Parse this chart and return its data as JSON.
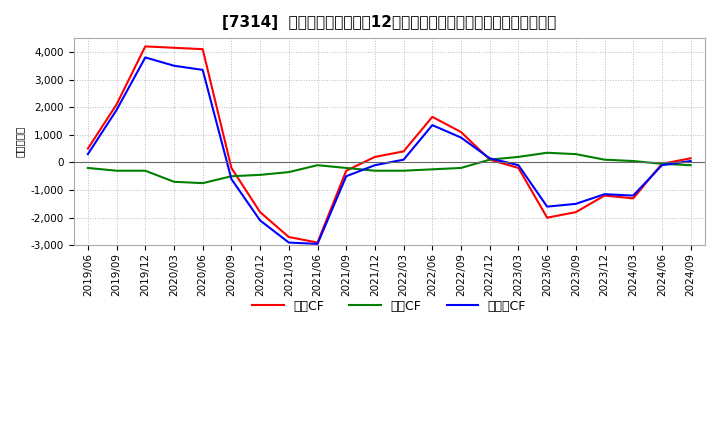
{
  "title": "[7314]  キャッシュフローの12か月移動合計の対前年同期増減額の推移",
  "ylabel": "（百万円）",
  "x_labels": [
    "2019/06",
    "2019/09",
    "2019/12",
    "2020/03",
    "2020/06",
    "2020/09",
    "2020/12",
    "2021/03",
    "2021/06",
    "2021/09",
    "2021/12",
    "2022/03",
    "2022/06",
    "2022/09",
    "2022/12",
    "2023/03",
    "2023/06",
    "2023/09",
    "2023/12",
    "2024/03",
    "2024/06",
    "2024/09"
  ],
  "series": {
    "営業CF": {
      "color": "#ff0000",
      "values": [
        500,
        2100,
        4200,
        4150,
        4100,
        -200,
        -1800,
        -2700,
        -2900,
        -300,
        200,
        400,
        1650,
        1100,
        100,
        -200,
        -2000,
        -1800,
        -1200,
        -1300,
        -50,
        150
      ]
    },
    "投資CF": {
      "color": "#008000",
      "values": [
        -200,
        -300,
        -300,
        -700,
        -750,
        -500,
        -450,
        -350,
        -100,
        -200,
        -300,
        -300,
        -250,
        -200,
        100,
        200,
        350,
        300,
        100,
        50,
        -50,
        -100
      ]
    },
    "フリーCF": {
      "color": "#0000ff",
      "values": [
        300,
        1900,
        3800,
        3500,
        3350,
        -600,
        -2100,
        -2900,
        -2950,
        -500,
        -100,
        100,
        1350,
        900,
        150,
        -100,
        -1600,
        -1500,
        -1150,
        -1200,
        -100,
        50
      ]
    }
  },
  "ylim": [
    -3000,
    4500
  ],
  "yticks": [
    -3000,
    -2000,
    -1000,
    0,
    1000,
    2000,
    3000,
    4000
  ],
  "background_color": "#ffffff",
  "grid_color": "#aaaaaa",
  "legend_labels": [
    "営業CF",
    "投資CF",
    "フリーCF"
  ],
  "title_fontsize": 11,
  "axis_fontsize": 7.5,
  "legend_fontsize": 9
}
